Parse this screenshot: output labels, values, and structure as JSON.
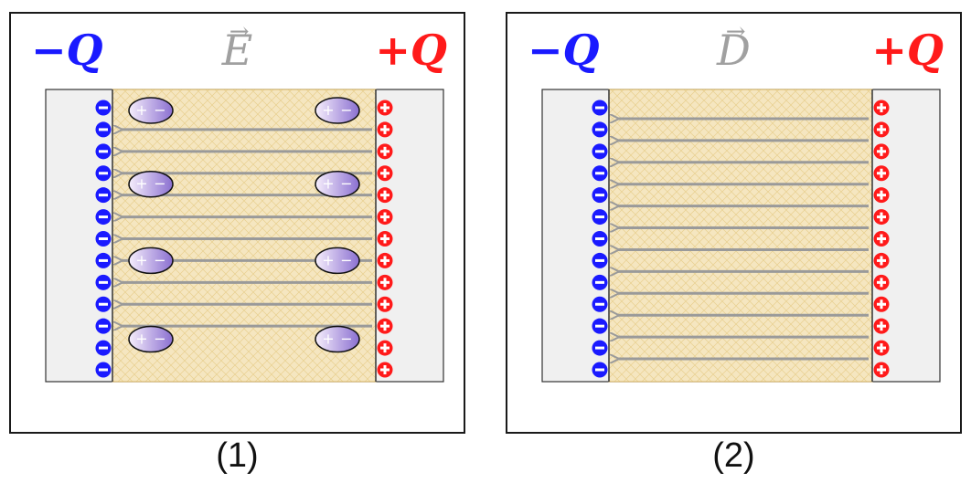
{
  "colors": {
    "negative": "#1a1aff",
    "positive": "#ff1a1a",
    "field_label": "#a0a0a0",
    "arrow": "#9a9a9a",
    "plate_bg": "#f0f0f0",
    "dielectric": "#f5e6c0"
  },
  "panels": [
    {
      "caption": "(1)",
      "neg_label": "−Q",
      "pos_label": "+Q",
      "field_symbol": "E",
      "field_line_count": 10,
      "dipole_count_per_side": 4,
      "show_dipoles": true
    },
    {
      "caption": "(2)",
      "neg_label": "−Q",
      "pos_label": "+Q",
      "field_symbol": "D",
      "field_line_count": 12,
      "dipole_count_per_side": 0,
      "show_dipoles": false
    }
  ],
  "charge_count": 13,
  "icons": {
    "negative_charge": "minus-circle-icon",
    "positive_charge": "plus-circle-icon",
    "dipole": "dipole-ellipse-icon",
    "field_line": "arrow-left-icon"
  }
}
